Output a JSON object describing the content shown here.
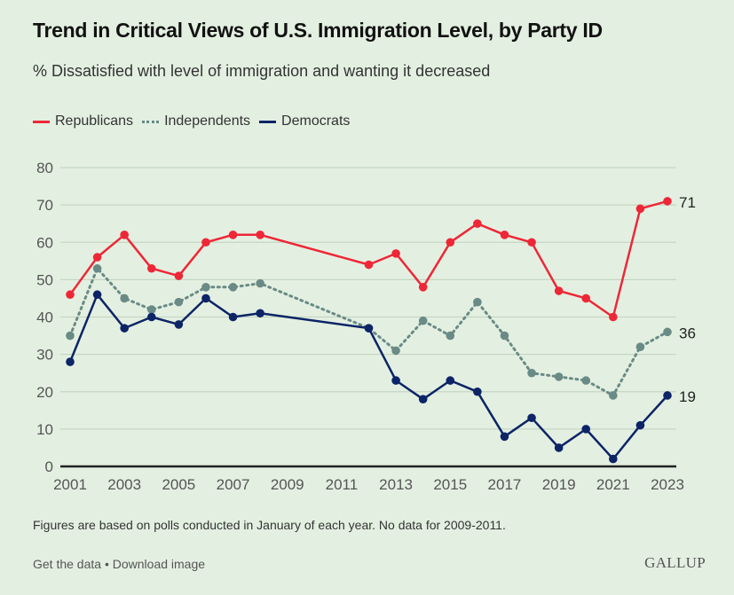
{
  "header": {
    "title": "Trend in Critical Views of U.S. Immigration Level, by Party ID",
    "subtitle": "% Dissatisfied with level of immigration and wanting it decreased"
  },
  "legend": [
    {
      "label": "Republicans",
      "color": "#ee2737",
      "style": "solid"
    },
    {
      "label": "Independents",
      "color": "#6a8a86",
      "style": "dotted"
    },
    {
      "label": "Democrats",
      "color": "#0d2466",
      "style": "solid"
    }
  ],
  "footer": {
    "note": "Figures are based on polls conducted in January of each year. No data for 2009-2011.",
    "get_data": "Get the data",
    "separator": "•",
    "download": "Download image",
    "logo": "GALLUP"
  },
  "chart_data": {
    "type": "line",
    "title": "Trend in Critical Views of U.S. Immigration Level, by Party ID",
    "subtitle": "% Dissatisfied with level of immigration and wanting it decreased",
    "xlabel": "",
    "ylabel": "",
    "x": [
      2001,
      2002,
      2003,
      2004,
      2005,
      2006,
      2007,
      2008,
      2012,
      2013,
      2014,
      2015,
      2016,
      2017,
      2018,
      2019,
      2020,
      2021,
      2022,
      2023
    ],
    "xlim": [
      2001,
      2023
    ],
    "ylim": [
      0,
      80
    ],
    "x_ticks": [
      2001,
      2003,
      2005,
      2007,
      2009,
      2011,
      2013,
      2015,
      2017,
      2019,
      2021,
      2023
    ],
    "y_ticks": [
      0,
      10,
      20,
      30,
      40,
      50,
      60,
      70,
      80
    ],
    "grid": true,
    "legend_position": "top-left",
    "series": [
      {
        "name": "Republicans",
        "color": "#ee2737",
        "style": "solid",
        "values": [
          46,
          56,
          62,
          53,
          51,
          60,
          62,
          62,
          54,
          57,
          48,
          60,
          65,
          62,
          60,
          47,
          45,
          40,
          69,
          71
        ],
        "end_label": "71"
      },
      {
        "name": "Independents",
        "color": "#6a8a86",
        "style": "dotted",
        "values": [
          35,
          53,
          45,
          42,
          44,
          48,
          48,
          49,
          37,
          31,
          39,
          35,
          44,
          35,
          25,
          24,
          23,
          19,
          32,
          36
        ],
        "end_label": "36"
      },
      {
        "name": "Democrats",
        "color": "#0d2466",
        "style": "solid",
        "values": [
          28,
          46,
          37,
          40,
          38,
          45,
          40,
          41,
          37,
          23,
          18,
          23,
          20,
          8,
          13,
          5,
          10,
          2,
          11,
          19
        ],
        "end_label": "19"
      }
    ]
  }
}
